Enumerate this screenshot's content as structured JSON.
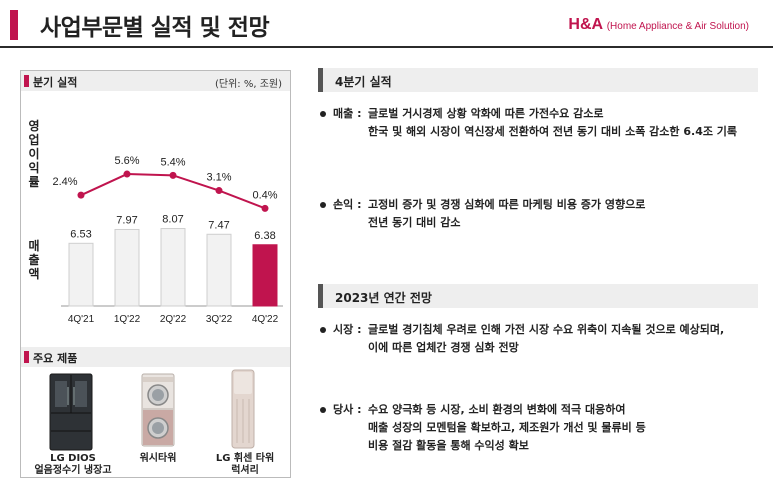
{
  "header": {
    "title": "사업부문별 실적 및 전망",
    "brand_main": "H&A",
    "brand_sub": "(Home Appliance & Air Solution)"
  },
  "left_panel": {
    "quarterly_header": "분기 실적",
    "unit": "(단위: %, 조원)",
    "op_margin_label": "영업이익률",
    "revenue_label": "매출액",
    "products_header": "주요 제품",
    "products": [
      {
        "name_line1": "LG DIOS",
        "name_line2": "얼음정수기 냉장고"
      },
      {
        "name_line1": "워시타워",
        "name_line2": ""
      },
      {
        "name_line1": "LG 휘센 타워",
        "name_line2": "럭셔리"
      }
    ]
  },
  "chart_data": {
    "type": "bar",
    "categories": [
      "4Q'21",
      "1Q'22",
      "2Q'22",
      "3Q'22",
      "4Q'22"
    ],
    "series": [
      {
        "name": "매출액",
        "values": [
          6.53,
          7.97,
          8.07,
          7.47,
          6.38
        ],
        "labels": [
          "6.53",
          "7.97",
          "8.07",
          "7.47",
          "6.38"
        ]
      },
      {
        "name": "영업이익률",
        "values": [
          2.4,
          5.6,
          5.4,
          3.1,
          0.4
        ],
        "labels": [
          "2.4%",
          "5.6%",
          "5.4%",
          "3.1%",
          "0.4%"
        ]
      }
    ],
    "bar_color": "#f2f2f2",
    "highlight_color": "#c0144e",
    "line_color": "#c0144e"
  },
  "right_panel": {
    "q4_header": "4분기 실적",
    "q4_items": [
      {
        "label": "매출 :",
        "line1": "글로벌 거시경제 상황 악화에 따른 가전수요 감소로",
        "line2": "한국 및 해외 시장이 역신장세 전환하여 전년 동기 대비 소폭 감소한 6.4조 기록"
      },
      {
        "label": "손익 :",
        "line1": "고정비 증가 및 경쟁 심화에 따른 마케팅 비용 증가 영향으로",
        "line2": "전년 동기 대비 감소"
      }
    ],
    "outlook_header": "2023년 연간 전망",
    "outlook_items": [
      {
        "label": "시장 :",
        "line1": "글로벌 경기침체 우려로 인해 가전 시장 수요 위축이 지속될 것으로 예상되며,",
        "line2": "이에 따른 업체간 경쟁 심화 전망",
        "line3": ""
      },
      {
        "label": "당사 :",
        "line1": "수요 양극화 등 시장, 소비 환경의 변화에 적극 대응하여",
        "line2": "매출 성장의 모멘텀을 확보하고, 제조원가 개선 및 물류비 등",
        "line3": "비용 절감 활동을 통해 수익성 확보"
      }
    ]
  }
}
